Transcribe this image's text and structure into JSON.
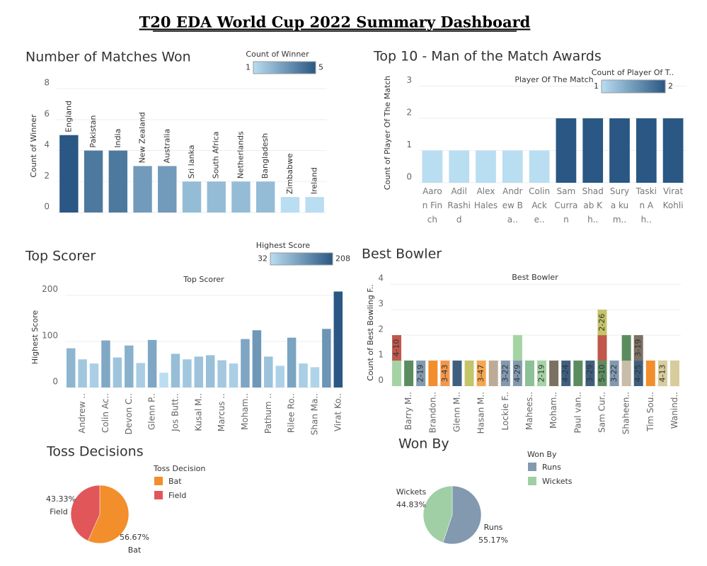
{
  "title": "T20 EDA World Cup 2022 Summary Dashboard",
  "chart_data": [
    {
      "type": "bar",
      "title": "Number of Matches Won",
      "y_label": "Count of Winner",
      "categories": [
        "England",
        "Pakistan",
        "India",
        "New Zealand",
        "Australia",
        "Sri lanka",
        "South Africa",
        "Netherlands",
        "Bangladesh",
        "Zimbabwe",
        "Ireland"
      ],
      "values": [
        5,
        4,
        4,
        3,
        3,
        2,
        2,
        2,
        2,
        1,
        1
      ],
      "ylim": [
        0,
        8.6
      ],
      "yticks": [
        0,
        2,
        4,
        6,
        8
      ],
      "grid": true,
      "legend": {
        "title": "Count of Winner",
        "min": 1,
        "max": 5,
        "colors": [
          "#b9ddf1",
          "#2a5783"
        ]
      }
    },
    {
      "type": "bar",
      "title": "Top 10 - Man of the Match Awards",
      "subtitle": "Player Of The Match",
      "y_label": "Count of Player Of The Match",
      "categories": [
        "Aaron Finch",
        "Adil Rashid",
        "Alex Hales",
        "Andrew Ba..",
        "Colin Acke..",
        "Sam Curran",
        "Shadab Kh..",
        "Surya kum..",
        "Taskin Ah..",
        "Virat Kohli"
      ],
      "values": [
        1,
        1,
        1,
        1,
        1,
        2,
        2,
        2,
        2,
        2
      ],
      "ylim": [
        0,
        3.1
      ],
      "yticks": [
        0,
        1,
        2,
        3
      ],
      "grid": true,
      "legend": {
        "title": "Count of Player Of T..",
        "min": 1,
        "max": 2,
        "colors": [
          "#b9ddf1",
          "#2a5783"
        ]
      }
    },
    {
      "type": "bar",
      "title": "Top Scorer",
      "subtitle": "Top Scorer",
      "y_label": "Highest Score",
      "categories": [
        null,
        "Andrew ..",
        null,
        "Colin Ac..",
        null,
        "Devon C..",
        null,
        "Glenn P..",
        null,
        "Jos Butt..",
        null,
        "Kusal M..",
        null,
        "Marcus ..",
        null,
        "Moham..",
        null,
        "Pathum ..",
        null,
        "Rilee Ro..",
        null,
        "Shan Ma..",
        null,
        "Virat Ko.."
      ],
      "values": [
        85,
        61,
        52,
        102,
        65,
        91,
        53,
        103,
        32,
        73,
        61,
        67,
        70,
        59,
        52,
        105,
        124,
        67,
        47,
        108,
        52,
        44,
        127,
        208
      ],
      "ylim": [
        0,
        218
      ],
      "yticks": [
        0,
        100,
        200
      ],
      "grid": true,
      "legend": {
        "title": "Highest Score",
        "min": 32,
        "max": 208,
        "colors": [
          "#b9ddf1",
          "#2a5783"
        ]
      }
    },
    {
      "type": "stacked_bar",
      "title": "Best Bowler",
      "subtitle": "Best Bowler",
      "y_label": "Count of Best Bowling F..",
      "categories": [
        null,
        "Barry M..",
        null,
        "Brandon..",
        null,
        "Glenn M..",
        null,
        "Hasan M..",
        null,
        "Lockie F..",
        null,
        "Mahees..",
        null,
        "Moham..",
        null,
        "Paul van..",
        null,
        "Sam Cur..",
        null,
        "Shaheen..",
        null,
        "Tim Sou..",
        null,
        "Wanind.."
      ],
      "stacks": [
        {
          "values": [
            1,
            1
          ],
          "colors": [
            "#a5d3a3",
            "#c0574b"
          ],
          "value_labels": [
            null,
            "4-10"
          ]
        },
        {
          "values": [
            1
          ],
          "colors": [
            "#5b8c5e"
          ],
          "value_labels": [
            null
          ]
        },
        {
          "values": [
            1
          ],
          "colors": [
            "#8299b0"
          ],
          "value_labels": [
            "2-19"
          ]
        },
        {
          "values": [
            1
          ],
          "colors": [
            "#f28e2b"
          ],
          "value_labels": [
            null
          ]
        },
        {
          "values": [
            1
          ],
          "colors": [
            "#f5974a"
          ],
          "value_labels": [
            "3-43"
          ]
        },
        {
          "values": [
            1
          ],
          "colors": [
            "#3f5f7f"
          ],
          "value_labels": [
            null
          ]
        },
        {
          "values": [
            1
          ],
          "colors": [
            "#c4c46a"
          ],
          "value_labels": [
            null
          ]
        },
        {
          "values": [
            1
          ],
          "colors": [
            "#f7a64e"
          ],
          "value_labels": [
            "3-47"
          ]
        },
        {
          "values": [
            1
          ],
          "colors": [
            "#bcab99"
          ],
          "value_labels": [
            null
          ]
        },
        {
          "values": [
            1
          ],
          "colors": [
            "#8299b0"
          ],
          "value_labels": [
            "3-22"
          ]
        },
        {
          "values": [
            1,
            1
          ],
          "colors": [
            "#8299b0",
            "#a5d3a3"
          ],
          "value_labels": [
            "4-29",
            null
          ]
        },
        {
          "values": [
            1
          ],
          "colors": [
            "#8cc096"
          ],
          "value_labels": [
            null
          ]
        },
        {
          "values": [
            1
          ],
          "colors": [
            "#a5d3a3"
          ],
          "value_labels": [
            "2-19"
          ]
        },
        {
          "values": [
            1
          ],
          "colors": [
            "#7b7162"
          ],
          "value_labels": [
            null
          ]
        },
        {
          "values": [
            1
          ],
          "colors": [
            "#3f5f7f"
          ],
          "value_labels": [
            "4-24"
          ]
        },
        {
          "values": [
            1
          ],
          "colors": [
            "#5b8c5e"
          ],
          "value_labels": [
            null
          ]
        },
        {
          "values": [
            1
          ],
          "colors": [
            "#3f5f7f"
          ],
          "value_labels": [
            "3-29"
          ]
        },
        {
          "values": [
            1,
            1,
            1
          ],
          "colors": [
            "#5b8c5e",
            "#c0574b",
            "#c4c46a"
          ],
          "value_labels": [
            "5-10",
            null,
            "2-26"
          ]
        },
        {
          "values": [
            1
          ],
          "colors": [
            "#8299b0"
          ],
          "value_labels": [
            "3-22"
          ]
        },
        {
          "values": [
            1,
            1
          ],
          "colors": [
            "#c9bca8",
            "#5b8c5e"
          ],
          "value_labels": [
            null,
            null
          ]
        },
        {
          "values": [
            1,
            1
          ],
          "colors": [
            "#3f5f7f",
            "#7b7162"
          ],
          "value_labels": [
            "4-25",
            "3-19"
          ]
        },
        {
          "values": [
            1
          ],
          "colors": [
            "#f28e2b"
          ],
          "value_labels": [
            null
          ]
        },
        {
          "values": [
            1
          ],
          "colors": [
            "#d8cc9c"
          ],
          "value_labels": [
            "4-13"
          ]
        },
        {
          "values": [
            1
          ],
          "colors": [
            "#d8cc9c"
          ],
          "value_labels": [
            null
          ]
        }
      ],
      "ylim": [
        0,
        4.2
      ],
      "yticks": [
        0,
        1,
        2,
        3,
        4
      ],
      "grid": true
    },
    {
      "type": "pie",
      "title": "Toss Decisions",
      "legend_title": "Toss Decision",
      "categories": [
        "Bat",
        "Field"
      ],
      "values": [
        56.67,
        43.33
      ],
      "value_labels": [
        "56.67%",
        "43.33%"
      ],
      "colors": [
        "#f28e2b",
        "#e15759"
      ]
    },
    {
      "type": "pie",
      "title": "Won By",
      "legend_title": "Won By",
      "categories": [
        "Runs",
        "Wickets"
      ],
      "values": [
        55.17,
        44.83
      ],
      "value_labels": [
        "55.17%",
        "44.83%"
      ],
      "colors": [
        "#8299b0",
        "#a0cfa5"
      ]
    }
  ]
}
